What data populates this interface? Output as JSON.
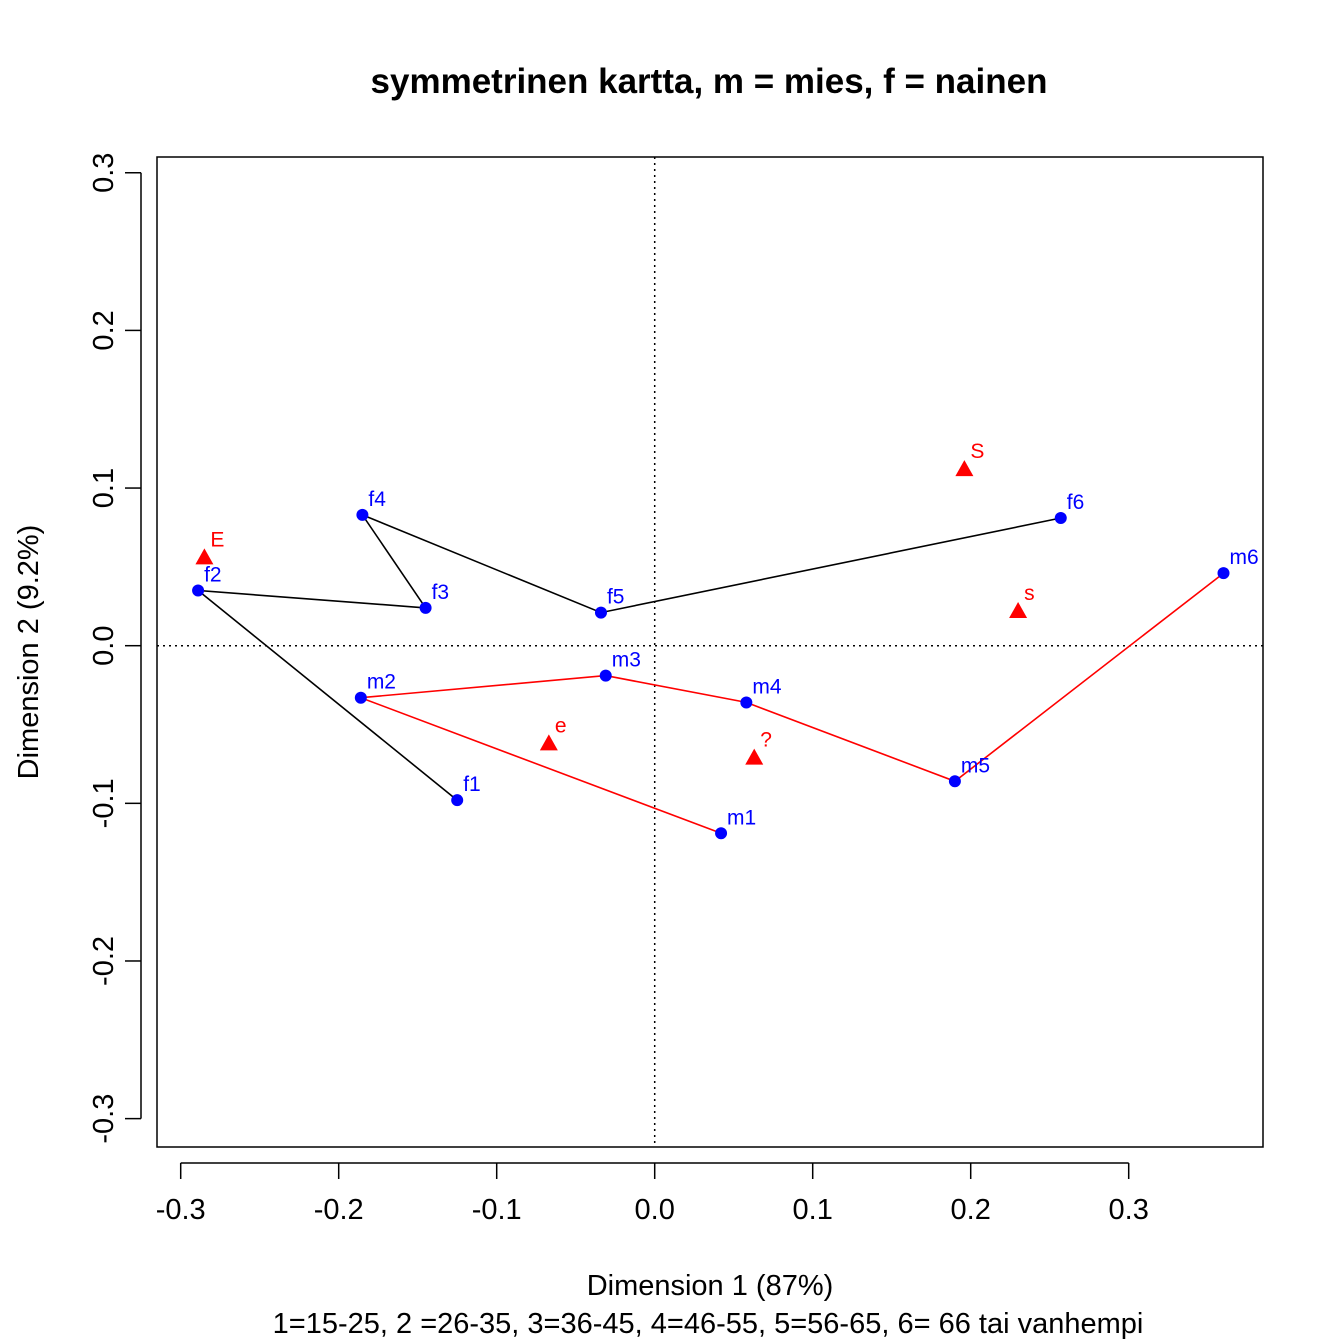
{
  "chart_data": {
    "type": "scatter",
    "title": "symmetrinen kartta, m = mies, f = nainen",
    "xlabel": "Dimension 1 (87%)",
    "ylabel": "Dimension 2 (9.2%)",
    "subtitle": "1=15-25, 2 =26-35, 3=36-45, 4=46-55, 5=56-65, 6= 66 tai vanhempi",
    "xlim": [
      -0.315,
      0.385
    ],
    "ylim": [
      -0.318,
      0.31
    ],
    "x_ticks": [
      -0.3,
      -0.2,
      -0.1,
      0.0,
      0.1,
      0.2,
      0.3
    ],
    "x_tick_labels": [
      "-0.3",
      "-0.2",
      "-0.1",
      "0.0",
      "0.1",
      "0.2",
      "0.3"
    ],
    "y_ticks": [
      -0.3,
      -0.2,
      -0.1,
      0.0,
      0.1,
      0.2,
      0.3
    ],
    "y_tick_labels": [
      "-0.3",
      "-0.2",
      "-0.1",
      "0.0",
      "0.1",
      "0.2",
      "0.3"
    ],
    "grid": false,
    "reference_lines": {
      "x": 0,
      "y": 0,
      "style": "dotted"
    },
    "row_points": {
      "color": "#0000ff",
      "marker": "circle",
      "points": [
        {
          "label": "f1",
          "x": -0.125,
          "y": -0.098
        },
        {
          "label": "f2",
          "x": -0.289,
          "y": 0.035
        },
        {
          "label": "f3",
          "x": -0.145,
          "y": 0.024
        },
        {
          "label": "f4",
          "x": -0.185,
          "y": 0.083
        },
        {
          "label": "f5",
          "x": -0.034,
          "y": 0.021
        },
        {
          "label": "f6",
          "x": 0.257,
          "y": 0.081
        },
        {
          "label": "m1",
          "x": 0.042,
          "y": -0.119
        },
        {
          "label": "m2",
          "x": -0.186,
          "y": -0.033
        },
        {
          "label": "m3",
          "x": -0.031,
          "y": -0.019
        },
        {
          "label": "m4",
          "x": 0.058,
          "y": -0.036
        },
        {
          "label": "m5",
          "x": 0.19,
          "y": -0.086
        },
        {
          "label": "m6",
          "x": 0.36,
          "y": 0.046
        }
      ]
    },
    "column_points": {
      "color": "#ff0000",
      "marker": "triangle",
      "points": [
        {
          "label": "E",
          "x": -0.285,
          "y": 0.056
        },
        {
          "label": "e",
          "x": -0.067,
          "y": -0.062
        },
        {
          "label": "?",
          "x": 0.063,
          "y": -0.071
        },
        {
          "label": "S",
          "x": 0.196,
          "y": 0.112
        },
        {
          "label": "s",
          "x": 0.23,
          "y": 0.022
        }
      ]
    },
    "connecting_lines": [
      {
        "group": "f",
        "color": "#000000",
        "order": [
          "f1",
          "f2",
          "f3",
          "f4",
          "f5",
          "f6"
        ]
      },
      {
        "group": "m",
        "color": "#ff0000",
        "order": [
          "m1",
          "m2",
          "m3",
          "m4",
          "m5",
          "m6"
        ]
      }
    ]
  }
}
